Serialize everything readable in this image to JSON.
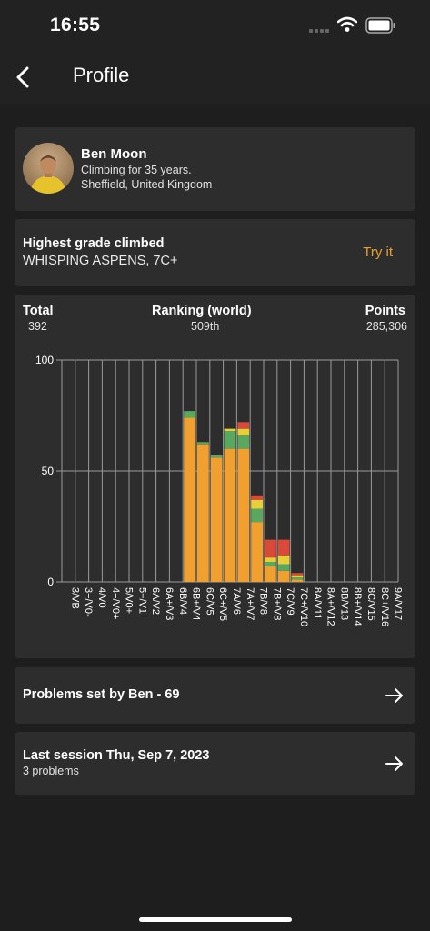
{
  "status": {
    "time": "16:55"
  },
  "nav": {
    "title": "Profile"
  },
  "profile": {
    "name": "Ben Moon",
    "climbing": "Climbing for 35 years.",
    "location": "Sheffield, United Kingdom"
  },
  "grade": {
    "label": "Highest grade climbed",
    "value": "WHISPING ASPENS, 7C+",
    "action": "Try it"
  },
  "stats": {
    "total_label": "Total",
    "total_value": "392",
    "ranking_label": "Ranking (world)",
    "ranking_value": "509th",
    "points_label": "Points",
    "points_value": "285,306"
  },
  "chart_data": {
    "type": "bar",
    "stacked": true,
    "categories": [
      "3/VB",
      "3+/V0-",
      "4/V0",
      "4+/V0+",
      "5/V0+",
      "5+/V1",
      "6A/V2",
      "6A+/V3",
      "6B/V4",
      "6B+/V4",
      "6C/V5",
      "6C+/V5",
      "7A/V6",
      "7A+/V7",
      "7B/V8",
      "7B+/V8",
      "7C/V9",
      "7C+/V10",
      "8A/V11",
      "8A+/V12",
      "8B/V13",
      "8B+/V14",
      "8C/V15",
      "8C+/V16",
      "9A/V17"
    ],
    "series": [
      {
        "color": "#f0a030",
        "values": [
          0,
          0,
          0,
          0,
          0,
          0,
          0,
          0,
          0,
          74,
          62,
          56,
          60,
          60,
          27,
          7,
          5,
          1,
          0,
          0,
          0,
          0,
          0,
          0,
          0
        ]
      },
      {
        "color": "#5aa860",
        "values": [
          0,
          0,
          0,
          0,
          0,
          0,
          0,
          0,
          0,
          3,
          1,
          1,
          8,
          6,
          6,
          2,
          3,
          1,
          0,
          0,
          0,
          0,
          0,
          0,
          0
        ]
      },
      {
        "color": "#e8cf3a",
        "values": [
          0,
          0,
          0,
          0,
          0,
          0,
          0,
          0,
          0,
          0,
          0,
          0,
          1,
          3,
          4,
          2,
          4,
          1,
          0,
          0,
          0,
          0,
          0,
          0,
          0
        ]
      },
      {
        "color": "#d94a3a",
        "values": [
          0,
          0,
          0,
          0,
          0,
          0,
          0,
          0,
          0,
          0,
          0,
          0,
          0,
          3,
          2,
          8,
          7,
          1,
          0,
          0,
          0,
          0,
          0,
          0,
          0
        ]
      }
    ],
    "yticks": [
      0,
      50,
      100
    ],
    "ylim": [
      0,
      100
    ],
    "grid": true
  },
  "links": {
    "problems": "Problems set by Ben - 69",
    "session": "Last session Thu, Sep 7, 2023",
    "session_sub": "3 problems"
  }
}
